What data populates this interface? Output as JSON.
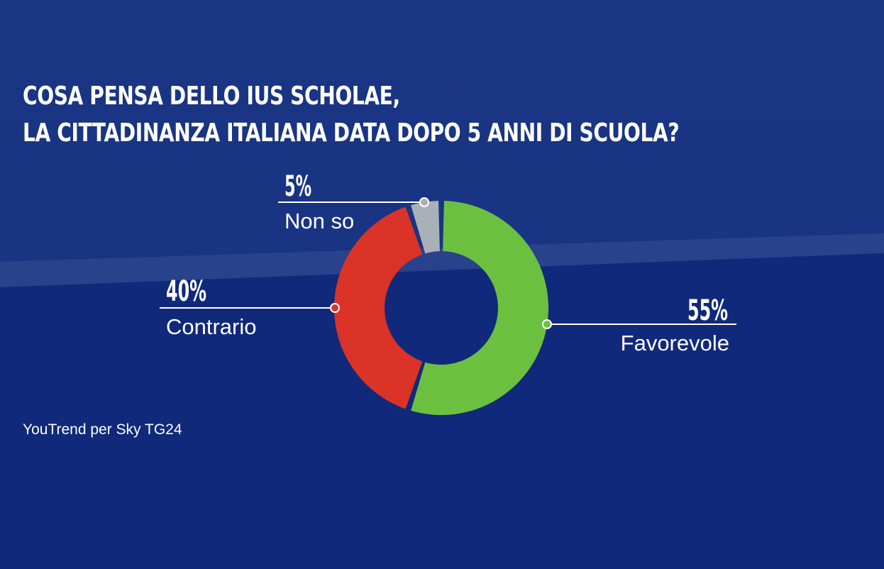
{
  "title": {
    "line1": "COSA PENSA DELLO IUS SCHOLAE,",
    "line2": "LA CITTADINANZA ITALIANA DATA DOPO 5 ANNI DI SCUOLA?"
  },
  "source": "YouTrend per Sky TG24",
  "chart_data": {
    "type": "pie",
    "donut": true,
    "title": "COSA PENSA DELLO IUS SCHOLAE, LA CITTADINANZA ITALIANA DATA DOPO 5 ANNI DI SCUOLA?",
    "slices": [
      {
        "label": "Favorevole",
        "value": 55,
        "display": "55%",
        "color": "#6cc040"
      },
      {
        "label": "Contrario",
        "value": 40,
        "display": "40%",
        "color": "#db3328"
      },
      {
        "label": "Non so",
        "value": 5,
        "display": "5%",
        "color": "#a9b0b8"
      }
    ]
  }
}
